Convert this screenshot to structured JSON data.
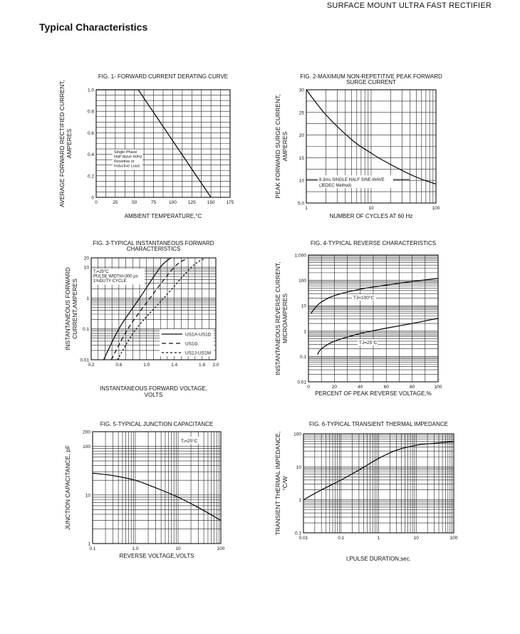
{
  "header": {
    "title": "SURFACE MOUNT ULTRA FAST RECTIFIER"
  },
  "section": {
    "title": "Typical Characteristics"
  },
  "chart_data": [
    {
      "id": "fig1",
      "type": "line",
      "title": "FIG. 1- FORWARD CURRENT DERATING CURVE",
      "xlabel": "AMBIENT TEMPERATURE,°C",
      "ylabel": [
        "AVERAGE FORWARD RECTIFIED CURRENT,",
        "AMPERES"
      ],
      "xscale": "linear",
      "yscale": "linear",
      "xlim": [
        0,
        175
      ],
      "ylim": [
        0,
        1.0
      ],
      "xticks": [
        0,
        25,
        50,
        75,
        100,
        125,
        150,
        175
      ],
      "xtick_labels": [
        "0",
        "25",
        "50",
        "75",
        "100",
        "125",
        "150",
        "175"
      ],
      "yticks": [
        0,
        0.2,
        0.4,
        0.6,
        0.8,
        1.0
      ],
      "ytick_labels": [
        "0",
        "0.2",
        "0.4",
        "0.6",
        "0.8",
        "1.0"
      ],
      "series": [
        {
          "x": [
            0,
            55,
            150
          ],
          "y": [
            1.0,
            1.0,
            0
          ],
          "style": "solid"
        }
      ],
      "annotation": {
        "lines": [
          "Single Phase",
          "Half Wave 60Hz",
          "Resistive or",
          "Inductive Load"
        ]
      }
    },
    {
      "id": "fig2",
      "type": "line",
      "title": [
        "FIG. 2-MAXIMUM NON-REPETITIVE PEAK FORWARD",
        "SURGE CURRENT"
      ],
      "xlabel": "NUMBER OF CYCLES AT 60 Hz",
      "ylabel": [
        "PEAK  FORWARD SURGE CURRENT,",
        "AMPERES"
      ],
      "xscale": "log",
      "yscale": "linear",
      "xlim": [
        1,
        100
      ],
      "ylim": [
        5,
        30
      ],
      "xticks": [
        1,
        10,
        100
      ],
      "xtick_labels": [
        "1",
        "10",
        "100"
      ],
      "yticks": [
        5,
        10,
        15,
        20,
        25,
        30
      ],
      "ytick_labels": [
        "5.0",
        "10",
        "15",
        "20",
        "25",
        "30"
      ],
      "series": [
        {
          "x": [
            1,
            2,
            5,
            10,
            20,
            50,
            100
          ],
          "y": [
            30,
            24.5,
            19,
            16,
            13.5,
            10.7,
            9.2
          ],
          "style": "solid"
        }
      ],
      "annotation": {
        "lines": [
          "8.3ms SINGLE HALF SINE-WAVE",
          "(JEDEC Method)"
        ]
      }
    },
    {
      "id": "fig3",
      "type": "line",
      "title": [
        "FIG. 3-TYPICAL INSTANTANEOUS FORWARD",
        "CHARACTERISTICS"
      ],
      "xlabel": [
        "INSTANTANEOUS FORWARD VOLTAGE,",
        "VOLTS"
      ],
      "ylabel": [
        "INSTANTANEOUS FORWARD",
        "CURRENT,AMPERES"
      ],
      "xscale": "linear",
      "yscale": "log",
      "xlim": [
        0.2,
        2.0
      ],
      "ylim": [
        0.01,
        20
      ],
      "xticks": [
        0.2,
        0.6,
        1.0,
        1.4,
        1.8,
        2.0
      ],
      "xtick_labels": [
        "0.2",
        "0.6",
        "1.0",
        "1.4",
        "1.8",
        "2.0"
      ],
      "yticks": [
        0.01,
        0.1,
        1,
        10,
        20
      ],
      "ytick_labels": [
        "0.01",
        "0.1",
        "1",
        "10",
        "20"
      ],
      "annotation": {
        "lines": [
          "Tⱼ=25°C",
          "PULSE WIDTH=300 µs",
          "1%DUTY CYCLE"
        ]
      },
      "series": [
        {
          "name": "US1A-US1D",
          "style": "solid",
          "x": [
            0.38,
            0.6,
            0.9,
            1.2,
            1.35
          ],
          "y": [
            0.01,
            0.1,
            1,
            10,
            20
          ]
        },
        {
          "name": "US1G",
          "style": "dashed",
          "x": [
            0.49,
            0.73,
            1.05,
            1.4,
            1.6
          ],
          "y": [
            0.01,
            0.1,
            1,
            10,
            20
          ]
        },
        {
          "name": "US1J-US1M",
          "style": "dotted",
          "x": [
            0.58,
            0.85,
            1.25,
            1.65,
            1.85
          ],
          "y": [
            0.01,
            0.1,
            1,
            10,
            20
          ]
        }
      ]
    },
    {
      "id": "fig4",
      "type": "line",
      "title": "FIG. 4-TYPICAL REVERSE CHARACTERISTICS",
      "xlabel": "PERCENT OF PEAK REVERSE VOLTAGE,%",
      "ylabel": [
        "INSTANTANEOUS REVERSE CURRENT,",
        "MICROAMPERES"
      ],
      "xscale": "linear",
      "yscale": "log",
      "xlim": [
        0,
        100
      ],
      "ylim": [
        0.01,
        1000
      ],
      "xticks": [
        0,
        20,
        40,
        60,
        80,
        100
      ],
      "xtick_labels": [
        "0",
        "20",
        "40",
        "60",
        "80",
        "100"
      ],
      "yticks": [
        0.01,
        0.1,
        1,
        10,
        100,
        1000
      ],
      "ytick_labels": [
        "0.01",
        "0.1",
        "1",
        "10",
        "100",
        "1,000"
      ],
      "series": [
        {
          "name": "TJ=100°C",
          "style": "solid",
          "x": [
            2,
            5,
            10,
            20,
            40,
            60,
            80,
            100
          ],
          "y": [
            5,
            8,
            14,
            25,
            45,
            65,
            90,
            120
          ]
        },
        {
          "name": "TJ=25°C",
          "style": "solid",
          "x": [
            7,
            10,
            20,
            40,
            60,
            80,
            100
          ],
          "y": [
            0.12,
            0.2,
            0.4,
            0.8,
            1.3,
            2.0,
            3.2
          ]
        }
      ]
    },
    {
      "id": "fig5",
      "type": "line",
      "title": "FIG. 5-TYPICAL JUNCTION CAPACITANCE",
      "xlabel": "REVERSE VOLTAGE,VOLTS",
      "ylabel": "JUNCTION CAPACITANCE, pF",
      "xscale": "log",
      "yscale": "log",
      "xlim": [
        0.1,
        100
      ],
      "ylim": [
        1,
        200
      ],
      "xticks": [
        0.1,
        1,
        10,
        100
      ],
      "xtick_labels": [
        "0.1",
        "1.0",
        "10",
        "100"
      ],
      "yticks": [
        1,
        10,
        100,
        200
      ],
      "ytick_labels": [
        "1",
        "10",
        "100",
        "200"
      ],
      "annotation": {
        "lines": [
          "Tⱼ=25°C"
        ]
      },
      "series": [
        {
          "style": "solid",
          "x": [
            0.1,
            0.3,
            1,
            3,
            10,
            30,
            100
          ],
          "y": [
            28,
            25,
            20,
            14,
            9,
            5.5,
            3
          ]
        }
      ]
    },
    {
      "id": "fig6",
      "type": "line",
      "title": "FIG. 6-TYPICAL TRANSIENT THERMAL IMPEDANCE",
      "xlabel": "t,PULSE DURATION,sec.",
      "ylabel": [
        "TRANSIENT THERMAL IMPEDANCE,",
        "°C/W"
      ],
      "xscale": "log",
      "yscale": "log",
      "xlim": [
        0.01,
        100
      ],
      "ylim": [
        0.1,
        100
      ],
      "xticks": [
        0.01,
        0.1,
        1,
        10,
        100
      ],
      "xtick_labels": [
        "0.01",
        "0.1",
        "1",
        "10",
        "100"
      ],
      "yticks": [
        0.1,
        1,
        10,
        100
      ],
      "ytick_labels": [
        "0.1",
        "1",
        "10",
        "100"
      ],
      "series": [
        {
          "style": "solid",
          "x": [
            0.01,
            0.03,
            0.1,
            0.3,
            1,
            3,
            10,
            30,
            100
          ],
          "y": [
            1,
            2,
            4,
            8,
            18,
            32,
            45,
            52,
            58
          ]
        }
      ]
    }
  ]
}
